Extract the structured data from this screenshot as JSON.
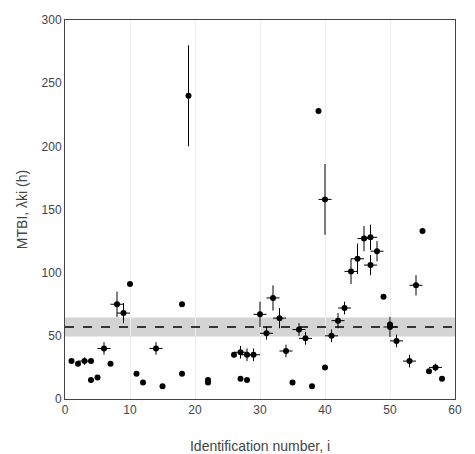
{
  "chart_data": {
    "type": "scatter",
    "xlabel": "Identification number, i",
    "ylabel": "MTBI, λki (h)",
    "xlim": [
      0,
      60
    ],
    "ylim": [
      0,
      300
    ],
    "xticks": [
      0,
      10,
      20,
      30,
      40,
      50,
      60
    ],
    "yticks": [
      0,
      50,
      100,
      150,
      200,
      250,
      300
    ],
    "grid": "x",
    "color": "#000000",
    "marker": "circle",
    "x": [
      1,
      2,
      3,
      4,
      4,
      5,
      6,
      7,
      8,
      9,
      10,
      11,
      12,
      14,
      15,
      18,
      18,
      19,
      22,
      22,
      26,
      27,
      27,
      28,
      28,
      29,
      30,
      31,
      32,
      33,
      34,
      35,
      36,
      37,
      38,
      39,
      40,
      40,
      41,
      42,
      43,
      44,
      45,
      46,
      47,
      47,
      48,
      49,
      50,
      50,
      51,
      53,
      54,
      55,
      56,
      57,
      58
    ],
    "values": [
      30,
      28,
      30,
      30,
      15,
      17,
      40,
      28,
      75,
      68,
      91,
      20,
      13,
      40,
      10,
      75,
      20,
      240,
      15,
      13,
      35,
      37,
      16,
      35,
      15,
      35,
      67,
      52,
      80,
      64,
      38,
      13,
      55,
      48,
      10,
      228,
      25,
      158,
      50,
      62,
      72,
      101,
      111,
      127,
      128,
      106,
      117,
      81,
      57,
      59,
      46,
      30,
      90,
      133,
      22,
      25,
      16
    ],
    "xerr": [
      0,
      0,
      1,
      0,
      0,
      0,
      1,
      0,
      1,
      1,
      0,
      0,
      0,
      1,
      0,
      0,
      0,
      0,
      0,
      0,
      0,
      1,
      0,
      1,
      0,
      1,
      1,
      1,
      1,
      1,
      1,
      0,
      1,
      1,
      0,
      0,
      0,
      1,
      1,
      1,
      1,
      1,
      1,
      1,
      1,
      1,
      1,
      0,
      1,
      0,
      1,
      1,
      1,
      0,
      0,
      1,
      0
    ],
    "yerr": [
      0,
      0,
      3,
      0,
      0,
      0,
      5,
      0,
      10,
      8,
      0,
      0,
      0,
      5,
      0,
      0,
      0,
      40,
      0,
      0,
      0,
      5,
      0,
      5,
      0,
      5,
      10,
      5,
      10,
      8,
      5,
      0,
      5,
      5,
      0,
      0,
      0,
      28,
      5,
      6,
      5,
      10,
      12,
      10,
      10,
      8,
      8,
      0,
      8,
      0,
      5,
      5,
      8,
      0,
      0,
      3,
      0
    ],
    "mean_value": 57.0,
    "mean_std_low": 49.5,
    "mean_std_high": 64.5,
    "mean_color": "#000000",
    "mean_line_style": "dashed",
    "shade_color": "#b0b0b0"
  }
}
